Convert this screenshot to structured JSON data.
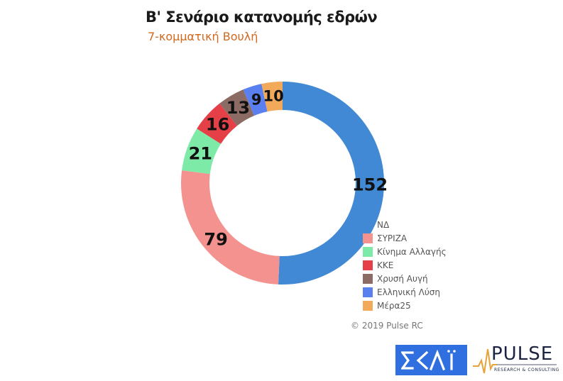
{
  "title": "Β' Σενάριο κατανομής εδρών",
  "subtitle": "7-κομματική Βουλή",
  "copyright": "© 2019 Pulse RC",
  "logos": {
    "skai": "ΣΚΑΪ",
    "pulse": "PULSE",
    "pulse_tagline": "RESEARCH & CONSULTING"
  },
  "chart_data": {
    "type": "pie",
    "variant": "donut",
    "categories": [
      "ΝΔ",
      "ΣΥΡΙΖΑ",
      "Κίνημα Αλλαγής",
      "ΚΚΕ",
      "Χρυσή Αυγή",
      "Ελληνική Λύση",
      "Μέρα25"
    ],
    "values": [
      152,
      79,
      21,
      16,
      13,
      9,
      10
    ],
    "colors": [
      "#4189d4",
      "#f4928f",
      "#7eeaa7",
      "#e53f47",
      "#8c6b64",
      "#5a80f0",
      "#f2a95a"
    ],
    "title": "Β' Σενάριο κατανομής εδρών",
    "subtitle": "7-κομματική Βουλή",
    "legend_position": "bottom-right",
    "data_labels": true
  }
}
